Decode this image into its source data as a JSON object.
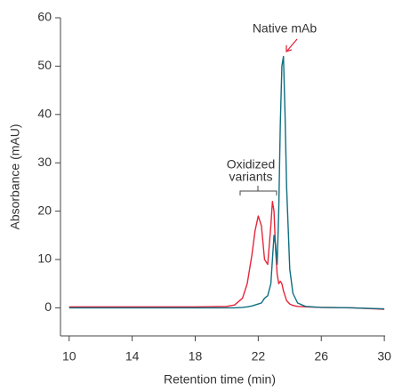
{
  "chart_data": {
    "type": "line",
    "x_label": "Retention time (min)",
    "y_label": "Absorbance (mAU)",
    "x": [
      10,
      14,
      18,
      20,
      20.5,
      21,
      21.3,
      21.6,
      21.8,
      22.0,
      22.2,
      22.4,
      22.6,
      22.8,
      22.9,
      23.0,
      23.1,
      23.2,
      23.3,
      23.4,
      23.5,
      23.6,
      23.7,
      23.8,
      24.0,
      24.2,
      24.5,
      25,
      26,
      28,
      30
    ],
    "series": [
      {
        "color": "#e5263a",
        "values": [
          0.2,
          0.2,
          0.2,
          0.3,
          0.6,
          2,
          5,
          11,
          16,
          19,
          17,
          10,
          9,
          17,
          22,
          20,
          12,
          7,
          5,
          5.5,
          5,
          3.5,
          2.5,
          1.5,
          0.8,
          0.5,
          0.3,
          0.2,
          0.1,
          0,
          -0.3
        ]
      },
      {
        "color": "#0e6e80",
        "values": [
          0,
          0,
          0,
          0,
          0,
          0.1,
          0.2,
          0.4,
          0.6,
          0.8,
          1,
          2,
          2.5,
          5,
          10,
          15,
          13,
          9,
          20,
          38,
          50,
          52,
          40,
          25,
          8,
          3,
          1,
          0.3,
          0.1,
          0,
          -0.2
        ]
      }
    ],
    "xlim": [
      9.45,
      30.05
    ],
    "xticks": [
      10,
      14,
      18,
      22,
      26,
      30
    ],
    "ylim": [
      -5.8,
      60
    ],
    "yticks": [
      0,
      10,
      20,
      30,
      40,
      50,
      60
    ],
    "annotations": {
      "native": "Native mAb",
      "oxidized": [
        "Oxidized",
        "variants"
      ]
    }
  }
}
